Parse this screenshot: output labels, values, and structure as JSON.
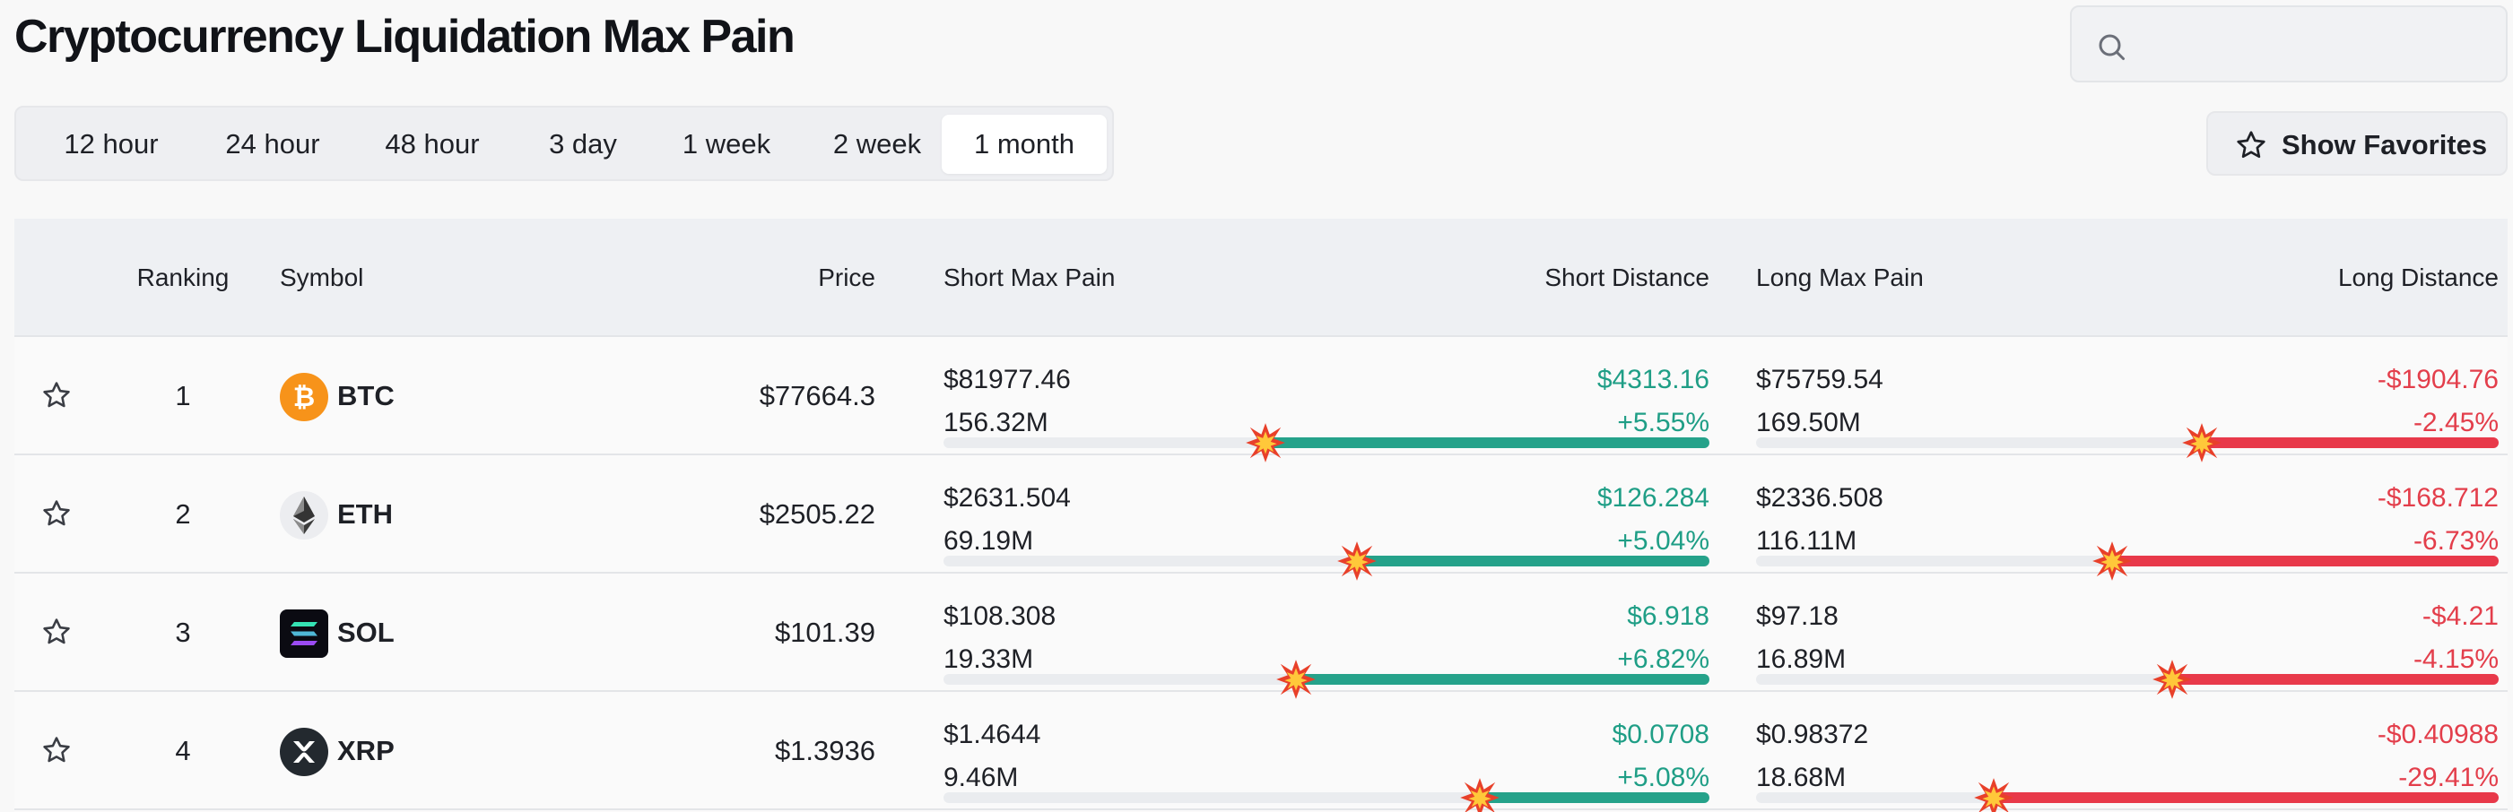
{
  "page": {
    "title": "Cryptocurrency Liquidation Max Pain"
  },
  "search": {
    "placeholder": "",
    "value": "",
    "icon": "search-icon"
  },
  "timeframes": {
    "tabs": [
      "12 hour",
      "24 hour",
      "48 hour",
      "3 day",
      "1 week",
      "2 week",
      "1 month"
    ],
    "selected": "1 month"
  },
  "favorites_button": {
    "label": "Show Favorites",
    "icon": "star-icon"
  },
  "table": {
    "headers": {
      "ranking": "Ranking",
      "symbol": "Symbol",
      "price": "Price",
      "short_max_pain": "Short Max Pain",
      "short_distance": "Short Distance",
      "long_max_pain": "Long Max Pain",
      "long_distance": "Long Distance"
    },
    "rows": [
      {
        "rank": "1",
        "symbol": "BTC",
        "icon": "bitcoin-icon",
        "price": "$77664.3",
        "short_max_pain": "$81977.46",
        "short_volume": "156.32M",
        "short_distance": "$4313.16",
        "short_distance_pct": "+5.55%",
        "short_bar_fill": 0.58,
        "long_max_pain": "$75759.54",
        "long_volume": "169.50M",
        "long_distance": "-$1904.76",
        "long_distance_pct": "-2.45%",
        "long_bar_fill": 0.4
      },
      {
        "rank": "2",
        "symbol": "ETH",
        "icon": "ethereum-icon",
        "price": "$2505.22",
        "short_max_pain": "$2631.504",
        "short_volume": "69.19M",
        "short_distance": "$126.284",
        "short_distance_pct": "+5.04%",
        "short_bar_fill": 0.46,
        "long_max_pain": "$2336.508",
        "long_volume": "116.11M",
        "long_distance": "-$168.712",
        "long_distance_pct": "-6.73%",
        "long_bar_fill": 0.52
      },
      {
        "rank": "3",
        "symbol": "SOL",
        "icon": "solana-icon",
        "price": "$101.39",
        "short_max_pain": "$108.308",
        "short_volume": "19.33M",
        "short_distance": "$6.918",
        "short_distance_pct": "+6.82%",
        "short_bar_fill": 0.54,
        "long_max_pain": "$97.18",
        "long_volume": "16.89M",
        "long_distance": "-$4.21",
        "long_distance_pct": "-4.15%",
        "long_bar_fill": 0.44
      },
      {
        "rank": "4",
        "symbol": "XRP",
        "icon": "xrp-icon",
        "price": "$1.3936",
        "short_max_pain": "$1.4644",
        "short_volume": "9.46M",
        "short_distance": "$0.0708",
        "short_distance_pct": "+5.08%",
        "short_bar_fill": 0.3,
        "long_max_pain": "$0.98372",
        "long_volume": "18.68M",
        "long_distance": "-$0.40988",
        "long_distance_pct": "-29.41%",
        "long_bar_fill": 0.68
      }
    ]
  },
  "colors": {
    "positive": "#1f9e86",
    "negative": "#e33e4b",
    "positive_bar": "#25a28a",
    "negative_bar": "#e8394a",
    "bitcoin": "#f7931a"
  }
}
